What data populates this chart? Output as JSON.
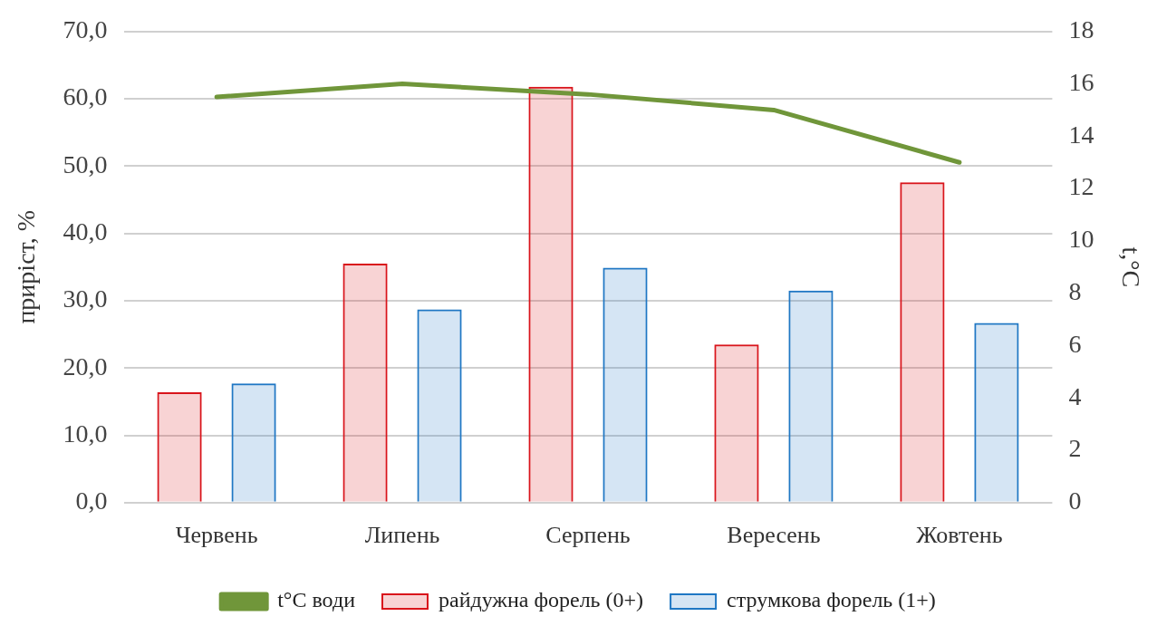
{
  "chart_data": {
    "type": "bar",
    "ylabel": "приріст, %",
    "y2label": "t,°C",
    "categories": [
      "Червень",
      "Липень",
      "Серпень",
      "Вересень",
      "Жовтень"
    ],
    "series": [
      {
        "name": "райдужна форель (0+)",
        "color": "#d9141b",
        "values": [
          16.4,
          35.5,
          61.8,
          23.5,
          47.6
        ]
      },
      {
        "name": "струмкова форель (1+)",
        "color": "#1f77c4",
        "values": [
          17.7,
          28.7,
          34.9,
          31.5,
          26.7
        ]
      },
      {
        "name": "t°C води",
        "type": "line",
        "axis": "y2",
        "color": "#70963a",
        "values": [
          15.5,
          16.0,
          15.6,
          15.0,
          13.0
        ]
      }
    ],
    "ylim": [
      0,
      70
    ],
    "yticks": [
      {
        "value": 0,
        "label": "0,0"
      },
      {
        "value": 10,
        "label": "10,0"
      },
      {
        "value": 20,
        "label": "20,0"
      },
      {
        "value": 30,
        "label": "30,0"
      },
      {
        "value": 40,
        "label": "40,0"
      },
      {
        "value": 50,
        "label": "50,0"
      },
      {
        "value": 60,
        "label": "60,0"
      },
      {
        "value": 70,
        "label": "70,0"
      }
    ],
    "y2lim": [
      0,
      18
    ],
    "y2ticks": [
      0,
      2,
      4,
      6,
      8,
      10,
      12,
      14,
      16,
      18
    ],
    "grid": "y",
    "legend": "bottom",
    "marker": "none"
  }
}
